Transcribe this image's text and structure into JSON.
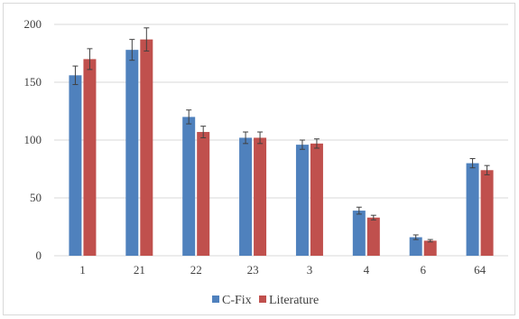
{
  "chart_data": {
    "type": "bar",
    "title": "",
    "xlabel": "",
    "ylabel": "",
    "categories": [
      "1",
      "21",
      "22",
      "23",
      "3",
      "4",
      "6",
      "64"
    ],
    "series": [
      {
        "name": "C-Fix",
        "color": "#4f81bd",
        "values": [
          156,
          178,
          120,
          102,
          96,
          39,
          16,
          80
        ],
        "errors": [
          8,
          9,
          6,
          5,
          4,
          3,
          2,
          4
        ]
      },
      {
        "name": "Literature",
        "color": "#c0504d",
        "values": [
          170,
          187,
          107,
          102,
          97,
          33,
          13,
          74
        ],
        "errors": [
          9,
          10,
          5,
          5,
          4,
          2,
          1,
          4
        ]
      }
    ],
    "ylim": [
      0,
      200
    ],
    "yticks": [
      0,
      50,
      100,
      150,
      200
    ],
    "grid": true,
    "gridColor": "#d9d9d9",
    "legend_position": "bottom"
  }
}
